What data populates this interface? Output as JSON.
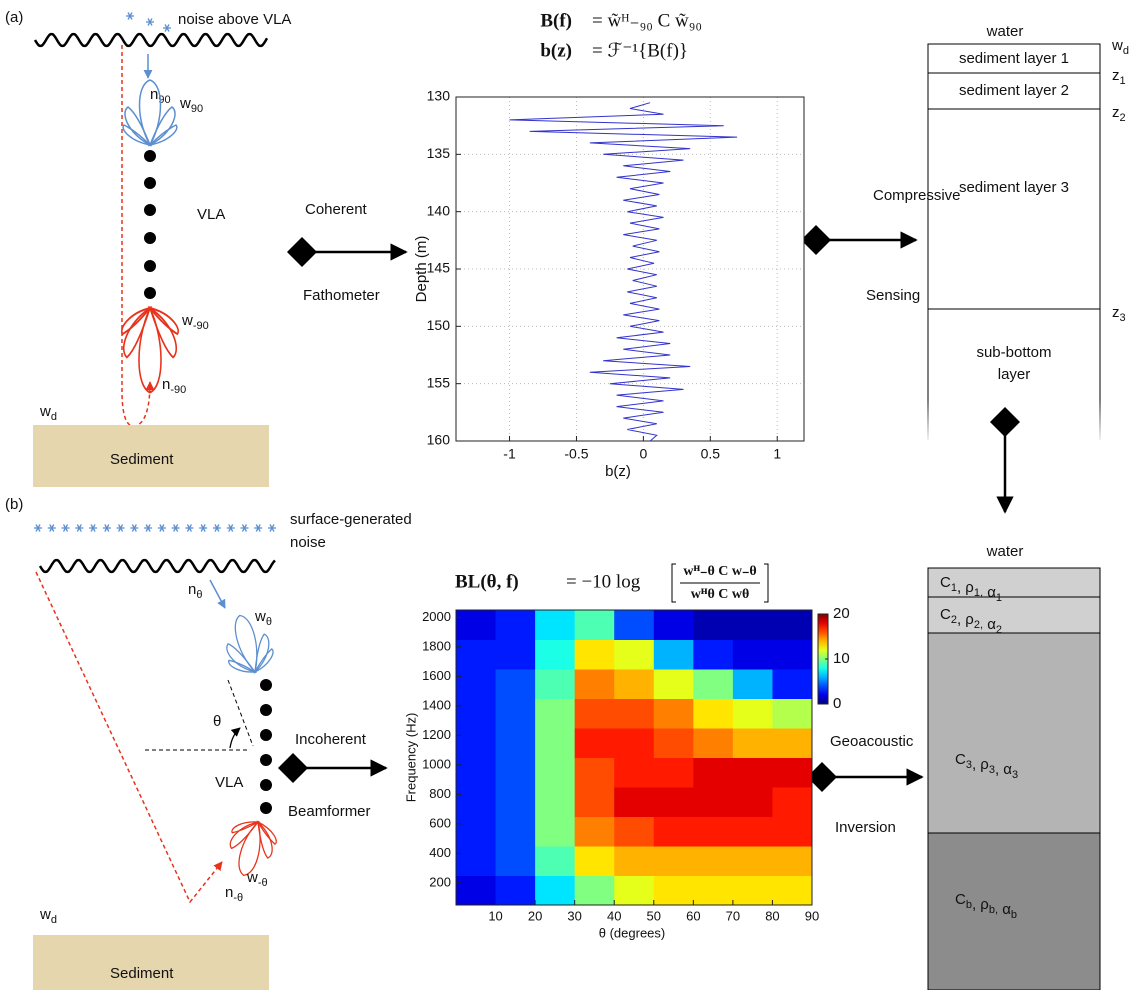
{
  "chart_data": [
    {
      "type": "line",
      "swap_axes": true,
      "invert_depth": true,
      "color": "#3333cc",
      "grid": true,
      "xlabel": "Depth (m)",
      "ylabel": "b(z)",
      "x": [
        130.5,
        131,
        131.5,
        132,
        132.5,
        133,
        133.5,
        134,
        134.5,
        135,
        135.5,
        136,
        136.5,
        137,
        137.5,
        138,
        138.5,
        139,
        139.5,
        140,
        140.5,
        141,
        141.5,
        142,
        142.5,
        143,
        143.5,
        144,
        144.5,
        145,
        145.5,
        146,
        146.5,
        147,
        147.5,
        148,
        148.5,
        149,
        149.5,
        150,
        150.5,
        151,
        151.5,
        152,
        152.5,
        153,
        153.5,
        154,
        154.5,
        155,
        155.5,
        156,
        156.5,
        157,
        157.5,
        158,
        158.5,
        159,
        159.5,
        160
      ],
      "values": [
        0.05,
        -0.1,
        0.15,
        -1.0,
        0.6,
        -0.85,
        0.7,
        -0.4,
        0.35,
        -0.3,
        0.3,
        -0.15,
        0.2,
        -0.2,
        0.15,
        -0.1,
        0.12,
        -0.15,
        0.1,
        -0.12,
        0.15,
        -0.1,
        0.12,
        -0.15,
        0.1,
        -0.08,
        0.12,
        -0.1,
        0.08,
        -0.12,
        0.1,
        -0.08,
        0.1,
        -0.12,
        0.1,
        -0.1,
        0.12,
        -0.15,
        0.12,
        -0.1,
        0.15,
        -0.2,
        0.2,
        -0.15,
        0.2,
        -0.3,
        0.35,
        -0.4,
        0.2,
        -0.25,
        0.3,
        -0.2,
        0.15,
        -0.2,
        0.15,
        -0.15,
        0.1,
        -0.12,
        0.1,
        0.05
      ],
      "xlim": [
        130,
        160
      ],
      "xticks": [
        130,
        135,
        140,
        145,
        150,
        155,
        160
      ],
      "ylim": [
        -1.4,
        1.2
      ],
      "yticks": [
        -1,
        -0.5,
        0,
        0.5,
        1
      ]
    },
    {
      "type": "heatmap",
      "colormap": "jet",
      "xlabel": "θ (degrees)",
      "ylabel": "Frequency (Hz)",
      "xbins": [
        0,
        10,
        20,
        30,
        40,
        50,
        60,
        70,
        80,
        90
      ],
      "ybins": [
        50,
        250,
        450,
        650,
        850,
        1050,
        1250,
        1450,
        1650,
        1850,
        2050
      ],
      "values": [
        [
          2,
          3,
          7,
          10,
          12,
          13,
          13,
          13,
          13
        ],
        [
          3,
          4,
          9,
          13,
          14,
          14,
          14,
          14,
          14
        ],
        [
          3,
          4,
          10,
          15,
          16,
          17,
          17,
          17,
          17
        ],
        [
          3,
          4,
          10,
          16,
          18,
          18,
          18,
          18,
          17
        ],
        [
          3,
          4,
          10,
          16,
          17,
          17,
          18,
          18,
          18
        ],
        [
          3,
          4,
          10,
          17,
          17,
          16,
          15,
          14,
          14
        ],
        [
          3,
          4,
          10,
          16,
          16,
          15,
          13,
          12,
          11
        ],
        [
          3,
          4,
          9,
          15,
          14,
          12,
          10,
          6,
          3
        ],
        [
          3,
          3,
          8,
          13,
          12,
          6,
          3,
          2,
          2
        ],
        [
          2,
          3,
          7,
          9,
          4,
          2,
          1,
          1,
          1
        ]
      ],
      "xlim": [
        0,
        90
      ],
      "xticks": [
        10,
        20,
        30,
        40,
        50,
        60,
        70,
        80,
        90
      ],
      "ylim": [
        50,
        2050
      ],
      "yticks": [
        200,
        400,
        600,
        800,
        1000,
        1200,
        1400,
        1600,
        1800,
        2000
      ],
      "clim": [
        0,
        20
      ],
      "cticks": [
        0,
        10,
        20
      ]
    }
  ],
  "panel_a": {
    "label": "(a)",
    "noise": "noise above VLA",
    "n": [
      {
        "t": "n",
        "sub": "90"
      }
    ],
    "w": [
      {
        "t": "w",
        "sub": "90"
      }
    ],
    "vla": "VLA",
    "w_minus": [
      {
        "t": "w",
        "sub": "-90"
      }
    ],
    "n_minus": [
      {
        "t": "n",
        "sub": "-90"
      }
    ],
    "wd": [
      {
        "t": "w",
        "sub": "d"
      }
    ],
    "sediment": "Sediment",
    "method": [
      "Coherent",
      "Fathometer"
    ],
    "formula": [
      [
        "B(f)",
        "= w̃ᴴ₋₉₀ C w̃₉₀"
      ],
      [
        "b(z)",
        "= ℱ⁻¹{B(f)}"
      ]
    ],
    "process": [
      "Compressive",
      "Sensing"
    ],
    "model": {
      "top": "water",
      "layers": [
        "sediment layer 1",
        "sediment layer 2",
        "sediment layer 3"
      ],
      "bottom": [
        "sub-bottom",
        "layer"
      ],
      "depths": [
        [
          {
            "t": "w",
            "sub": "d"
          }
        ],
        [
          {
            "t": "z",
            "sub": "1"
          }
        ],
        [
          {
            "t": "z",
            "sub": "2"
          }
        ],
        [
          {
            "t": "z",
            "sub": "3"
          }
        ]
      ]
    }
  },
  "panel_b": {
    "label": "(b)",
    "noise": [
      "surface-generated",
      "noise"
    ],
    "n": [
      {
        "t": "n",
        "sub": "θ"
      }
    ],
    "w": [
      {
        "t": "w",
        "sub": "θ"
      }
    ],
    "angle": "θ",
    "vla": "VLA",
    "w_minus": [
      {
        "t": "w",
        "sub": "-θ"
      }
    ],
    "n_minus": [
      {
        "t": "n",
        "sub": "-θ"
      }
    ],
    "wd": [
      {
        "t": "w",
        "sub": "d"
      }
    ],
    "sediment": "Sediment",
    "method": [
      "Incoherent",
      "Beamformer"
    ],
    "formula": [
      "BL(θ, f)",
      "= −10 log",
      "wᴴ₋θ C w₋θ",
      "wᴴθ C wθ"
    ],
    "process": [
      "Geoacoustic",
      "Inversion"
    ],
    "model": {
      "top": "water",
      "layers": [
        [
          {
            "t": "C",
            "sub": "1"
          },
          {
            "t": ", ρ",
            "sub": "1,"
          },
          {
            "t": " α",
            "sub": "1"
          }
        ],
        [
          {
            "t": "C",
            "sub": "2"
          },
          {
            "t": ", ρ",
            "sub": "2,"
          },
          {
            "t": " α",
            "sub": "2"
          }
        ],
        [
          {
            "t": "C",
            "sub": "3"
          },
          {
            "t": ", ρ",
            "sub": "3"
          },
          {
            "t": ", α",
            "sub": "3"
          }
        ],
        [
          {
            "t": "C",
            "sub": "b"
          },
          {
            "t": ", ρ",
            "sub": "b,"
          },
          {
            "t": " α",
            "sub": "b"
          }
        ]
      ]
    }
  }
}
